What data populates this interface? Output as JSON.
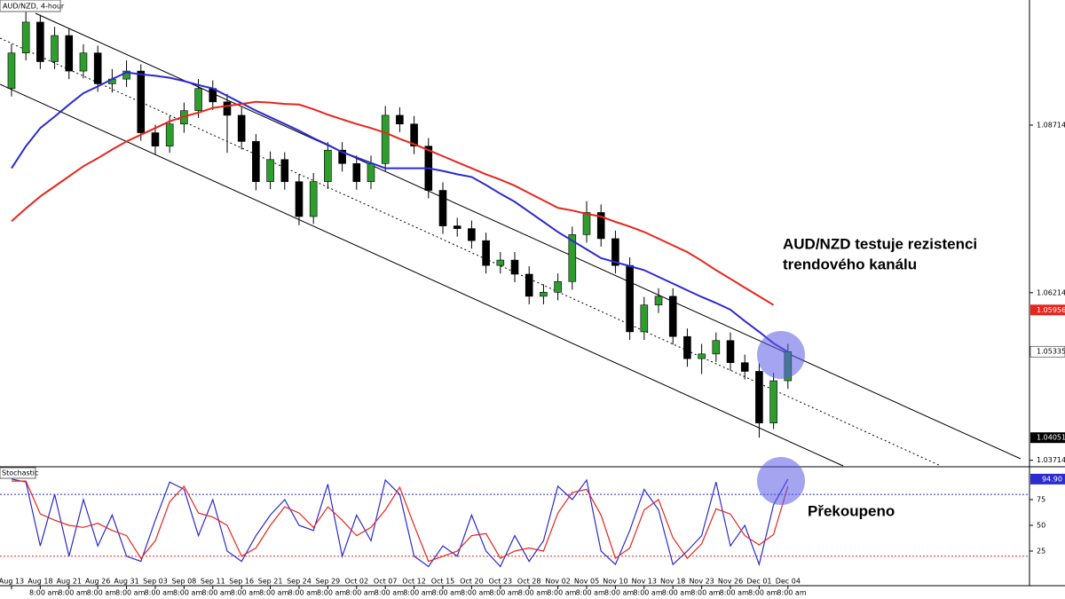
{
  "chart_data": [
    {
      "type": "candlestick",
      "title": "AUD/NZD, 4-hour",
      "open": [
        1.0926,
        1.0979,
        1.1025,
        1.0966,
        1.1005,
        1.0952,
        1.0979,
        1.0933,
        1.094,
        1.0952,
        1.086,
        1.084,
        1.0873,
        1.0893,
        1.0926,
        1.0906,
        1.0886,
        1.0847,
        1.0787,
        1.082,
        1.0787,
        1.0735,
        1.0787,
        1.0834,
        1.0814,
        1.0787,
        1.0814,
        1.0886,
        1.0873,
        1.084,
        1.0774,
        1.0721,
        1.0717,
        1.0699,
        1.0662,
        1.067,
        1.0649,
        1.0616,
        1.0622,
        1.0638,
        1.0708,
        1.0741,
        1.0702,
        1.0662,
        1.0563,
        1.0603,
        1.0616,
        1.0556,
        1.0523,
        1.053,
        1.055,
        1.0517,
        1.0504,
        1.0427,
        1.049
      ],
      "high": [
        1.0992,
        1.104,
        1.1036,
        1.1018,
        1.1015,
        1.0992,
        1.099,
        1.0955,
        1.0968,
        1.0962,
        1.0872,
        1.0885,
        1.0905,
        1.094,
        1.0938,
        1.0918,
        1.0898,
        1.0858,
        1.0832,
        1.0831,
        1.0798,
        1.08,
        1.0846,
        1.0846,
        1.0826,
        1.0826,
        1.09,
        1.0898,
        1.0885,
        1.0852,
        1.0786,
        1.0733,
        1.0729,
        1.0711,
        1.0682,
        1.0682,
        1.0661,
        1.0634,
        1.065,
        1.072,
        1.0758,
        1.0753,
        1.0714,
        1.0674,
        1.0615,
        1.0628,
        1.0628,
        1.0568,
        1.0545,
        1.0562,
        1.0562,
        1.0529,
        1.0516,
        1.0502,
        1.0545
      ],
      "low": [
        1.0914,
        1.0968,
        1.0955,
        1.0955,
        1.094,
        1.0941,
        1.0921,
        1.092,
        1.0928,
        1.0848,
        1.0828,
        1.083,
        1.086,
        1.0882,
        1.0894,
        1.083,
        1.0835,
        1.0774,
        1.0776,
        1.0775,
        1.0722,
        1.0724,
        1.0776,
        1.0802,
        1.0775,
        1.0776,
        1.0803,
        1.0861,
        1.0828,
        1.0762,
        1.0709,
        1.0705,
        1.0687,
        1.065,
        1.065,
        1.0637,
        1.0604,
        1.0604,
        1.061,
        1.0626,
        1.0696,
        1.069,
        1.065,
        1.0551,
        1.0551,
        1.0591,
        1.0544,
        1.0511,
        1.05,
        1.0518,
        1.0505,
        1.0492,
        1.04051,
        1.0418,
        1.0478
      ],
      "close": [
        1.0979,
        1.1025,
        1.0966,
        1.1005,
        1.0952,
        1.0979,
        1.0933,
        1.094,
        1.0952,
        1.086,
        1.084,
        1.0873,
        1.0893,
        1.0926,
        1.0906,
        1.0886,
        1.0847,
        1.0787,
        1.082,
        1.0787,
        1.0735,
        1.0787,
        1.0834,
        1.0814,
        1.0787,
        1.0814,
        1.0886,
        1.0873,
        1.084,
        1.0774,
        1.0721,
        1.0717,
        1.0699,
        1.0662,
        1.067,
        1.0649,
        1.0616,
        1.0622,
        1.0638,
        1.0708,
        1.0741,
        1.0702,
        1.0662,
        1.0563,
        1.0603,
        1.0616,
        1.0556,
        1.0523,
        1.053,
        1.055,
        1.0517,
        1.0504,
        1.0427,
        1.049,
        1.05335
      ],
      "up_color": "#2e9d2e",
      "down_color": "#000000",
      "series": [
        {
          "color": "#2b2bd0",
          "values": [
            1.0807,
            1.084,
            1.0867,
            1.0884,
            1.0902,
            1.0919,
            1.0929,
            1.094,
            1.095,
            1.0947,
            1.0945,
            1.0942,
            1.0937,
            1.0931,
            1.0926,
            1.0915,
            1.0904,
            1.0893,
            1.0883,
            1.0873,
            1.0863,
            1.0852,
            1.0842,
            1.0831,
            1.0823,
            1.0815,
            1.0807,
            1.0807,
            1.0807,
            1.0807,
            1.0803,
            1.0798,
            1.0794,
            1.0782,
            1.0769,
            1.0757,
            1.0742,
            1.0727,
            1.0712,
            1.0699,
            1.0686,
            1.0673,
            1.0667,
            1.0661,
            1.0655,
            1.0645,
            1.0635,
            1.0625,
            1.0615,
            1.0606,
            1.0596,
            1.0579,
            1.0563,
            1.0546,
            1.0533
          ]
        },
        {
          "color": "#e8251e",
          "values": [
            1.0728,
            1.0747,
            1.0765,
            1.078,
            1.0795,
            1.081,
            1.0822,
            1.0835,
            1.0847,
            1.0857,
            1.0867,
            1.0877,
            1.0884,
            1.089,
            1.0897,
            1.09,
            1.0903,
            1.0906,
            1.0905,
            1.0903,
            1.0902,
            1.0895,
            1.0887,
            1.088,
            1.0873,
            1.0867,
            1.086,
            1.0851,
            1.0843,
            1.0834,
            1.0825,
            1.0816,
            1.0807,
            1.0798,
            1.079,
            1.0781,
            1.077,
            1.0759,
            1.0748,
            1.0744,
            1.0739,
            1.0735,
            1.0727,
            1.072,
            1.0712,
            1.0702,
            1.0692,
            1.0682,
            1.0669,
            1.0655,
            1.0642,
            1.0629,
            1.0616,
            1.0603,
            null
          ]
        }
      ],
      "xlim": [
        -0.8,
        70.8
      ],
      "xticks": [
        {
          "value": 0,
          "label": "Aug 13"
        },
        {
          "value": 2,
          "label": "Aug 18"
        },
        {
          "value": 4,
          "label": "Aug 21"
        },
        {
          "value": 6,
          "label": "Aug 26"
        },
        {
          "value": 8,
          "label": "Aug 31"
        },
        {
          "value": 10,
          "label": "Sep 03"
        },
        {
          "value": 12,
          "label": "Sep 08"
        },
        {
          "value": 14,
          "label": "Sep 11"
        },
        {
          "value": 16,
          "label": "Sep 16"
        },
        {
          "value": 18,
          "label": "Sep 21"
        },
        {
          "value": 20,
          "label": "Sep 24"
        },
        {
          "value": 22,
          "label": "Sep 29"
        },
        {
          "value": 24,
          "label": "Oct 02"
        },
        {
          "value": 26,
          "label": "Oct 07"
        },
        {
          "value": 28,
          "label": "Oct 12"
        },
        {
          "value": 30,
          "label": "Oct 15"
        },
        {
          "value": 32,
          "label": "Oct 20"
        },
        {
          "value": 34,
          "label": "Oct 23"
        },
        {
          "value": 36,
          "label": "Oct 28"
        },
        {
          "value": 38,
          "label": "Nov 02"
        },
        {
          "value": 40,
          "label": "Nov 05"
        },
        {
          "value": 42,
          "label": "Nov 10"
        },
        {
          "value": 44,
          "label": "Nov 13"
        },
        {
          "value": 46,
          "label": "Nov 18"
        },
        {
          "value": 48,
          "label": "Nov 23"
        },
        {
          "value": 50,
          "label": "Nov 26"
        },
        {
          "value": 52,
          "label": "Dec 01"
        },
        {
          "value": 54,
          "label": "Dec 04"
        }
      ],
      "time_labels": [
        "8:00 am",
        "8:00 am",
        "8:00 am",
        "8:00 am",
        "8:00 am",
        "8:00 am",
        "8:00 am",
        "8:00 am",
        "8:00 am",
        "8:00 am",
        "8:00 am",
        "8:00 am",
        "8:00 am",
        "8:00 am",
        "8:00 am",
        "8:00 am",
        "8:00 am",
        "8:00 am",
        "8:00 am",
        "8:00 am",
        "8:00 am",
        "8:00 am",
        "8:00 am",
        "8:00 am",
        "8:00 am",
        "8:00 am",
        "8:00 am"
      ],
      "ylim": [
        1.0363,
        1.1058
      ],
      "yticks": [
        1.03714,
        1.06214,
        1.08714
      ],
      "price_labels": [
        {
          "value": 1.05956,
          "color": "#e8251e"
        },
        {
          "value": 1.05335,
          "color": "#ffffff"
        },
        {
          "value": 1.04051,
          "color": "#000000"
        }
      ]
    },
    {
      "type": "line",
      "title": "Stochastic",
      "series": [
        {
          "color": "#2b2bd0",
          "values": [
            95,
            92,
            30,
            80,
            20,
            75,
            30,
            60,
            20,
            15,
            55,
            92,
            85,
            40,
            75,
            25,
            15,
            40,
            60,
            75,
            50,
            45,
            90,
            20,
            60,
            35,
            94,
            80,
            20,
            10,
            30,
            20,
            60,
            25,
            10,
            40,
            15,
            35,
            88,
            75,
            94,
            25,
            12,
            45,
            85,
            65,
            12,
            25,
            40,
            92,
            30,
            50,
            12,
            70,
            94.9
          ]
        },
        {
          "color": "#e8251e",
          "values": [
            93,
            93,
            61,
            55,
            50,
            48,
            52,
            45,
            40,
            18,
            35,
            73,
            88,
            62,
            58,
            50,
            20,
            28,
            50,
            68,
            62,
            48,
            68,
            55,
            40,
            48,
            65,
            87,
            50,
            15,
            20,
            25,
            40,
            42,
            18,
            25,
            28,
            25,
            62,
            82,
            85,
            60,
            18,
            28,
            65,
            75,
            38,
            18,
            32,
            66,
            61,
            40,
            31,
            41,
            88
          ]
        }
      ],
      "ylim": [
        -8.6,
        106
      ],
      "yticks": [
        25,
        50,
        75
      ],
      "levels": [
        {
          "value": 80,
          "color": "#2b2bd0"
        },
        {
          "value": 20,
          "color": "#e8251e"
        }
      ],
      "last_label": {
        "value": 94.9,
        "label": "94.90",
        "color": "#2b2bd0"
      }
    }
  ],
  "annotations": {
    "resistance": [
      "AUD/NZD testuje rezistenci",
      "trendového kanálu"
    ],
    "overbought": "Překoupeno"
  }
}
